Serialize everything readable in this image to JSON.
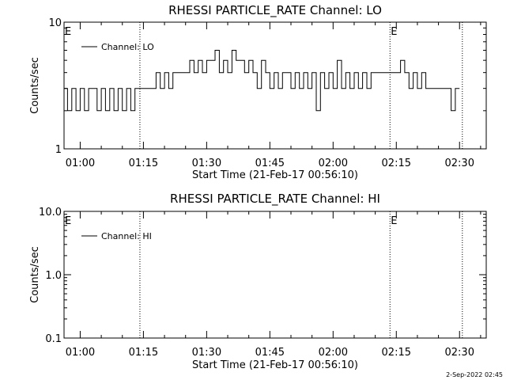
{
  "timestamp": "2-Sep-2022 02:45",
  "chart_data": [
    {
      "type": "line",
      "title": "RHESSI PARTICLE_RATE Channel: LO",
      "xlabel": "Start Time (21-Feb-17 00:56:10)",
      "ylabel": "Counts/sec",
      "yscale": "log",
      "ylim": [
        1,
        10
      ],
      "yticks": [
        "1",
        "10"
      ],
      "xlim": [
        "00:56:10",
        "02:36:20"
      ],
      "xticks": [
        "01:00",
        "01:15",
        "01:30",
        "01:45",
        "02:00",
        "02:15",
        "02:30"
      ],
      "legend": "top-left",
      "markers": [
        {
          "label": "E",
          "time": "00:56:10"
        },
        {
          "label": "E",
          "time": "02:13:30"
        }
      ],
      "vlines": [
        "01:14:10",
        "02:13:30",
        "02:30:40"
      ],
      "series": [
        {
          "name": "Channel: LO",
          "x": [
            "00:56:10",
            "00:57:00",
            "00:58:00",
            "00:59:00",
            "01:00:00",
            "01:01:00",
            "01:02:00",
            "01:03:00",
            "01:04:00",
            "01:05:00",
            "01:06:00",
            "01:07:00",
            "01:08:00",
            "01:09:00",
            "01:10:00",
            "01:11:00",
            "01:12:00",
            "01:13:00",
            "01:14:00",
            "01:15:00",
            "01:16:00",
            "01:17:00",
            "01:18:00",
            "01:19:00",
            "01:20:00",
            "01:21:00",
            "01:22:00",
            "01:23:00",
            "01:24:00",
            "01:25:00",
            "01:26:00",
            "01:27:00",
            "01:28:00",
            "01:29:00",
            "01:30:00",
            "01:31:00",
            "01:32:00",
            "01:33:00",
            "01:34:00",
            "01:35:00",
            "01:36:00",
            "01:37:00",
            "01:38:00",
            "01:39:00",
            "01:40:00",
            "01:41:00",
            "01:42:00",
            "01:43:00",
            "01:44:00",
            "01:45:00",
            "01:46:00",
            "01:47:00",
            "01:48:00",
            "01:49:00",
            "01:50:00",
            "01:51:00",
            "01:52:00",
            "01:53:00",
            "01:54:00",
            "01:55:00",
            "01:56:00",
            "01:57:00",
            "01:58:00",
            "01:59:00",
            "02:00:00",
            "02:01:00",
            "02:02:00",
            "02:03:00",
            "02:04:00",
            "02:05:00",
            "02:06:00",
            "02:07:00",
            "02:08:00",
            "02:09:00",
            "02:10:00",
            "02:11:00",
            "02:12:00",
            "02:13:00",
            "02:14:00",
            "02:15:00",
            "02:16:00",
            "02:17:00",
            "02:18:00",
            "02:19:00",
            "02:20:00",
            "02:21:00",
            "02:22:00",
            "02:23:00",
            "02:24:00",
            "02:25:00",
            "02:26:00",
            "02:27:00",
            "02:28:00",
            "02:29:00",
            "02:30:00"
          ],
          "values": [
            3,
            2,
            3,
            2,
            3,
            2,
            3,
            3,
            2,
            3,
            2,
            3,
            2,
            3,
            2,
            3,
            2,
            3,
            3,
            3,
            3,
            3,
            4,
            3,
            4,
            3,
            4,
            4,
            4,
            4,
            5,
            4,
            5,
            4,
            5,
            5,
            6,
            4,
            5,
            4,
            6,
            5,
            5,
            4,
            5,
            4,
            3,
            5,
            4,
            3,
            4,
            3,
            4,
            4,
            3,
            4,
            3,
            4,
            3,
            4,
            2,
            4,
            3,
            4,
            3,
            5,
            3,
            4,
            3,
            4,
            3,
            4,
            3,
            4,
            4,
            4,
            4,
            4,
            4,
            4,
            5,
            4,
            3,
            4,
            3,
            4,
            3,
            3,
            3,
            3,
            3,
            3,
            2,
            3,
            3
          ]
        }
      ]
    },
    {
      "type": "line",
      "title": "RHESSI PARTICLE_RATE Channel: HI",
      "xlabel": "Start Time (21-Feb-17 00:56:10)",
      "ylabel": "Counts/sec",
      "yscale": "log",
      "ylim": [
        0.1,
        10
      ],
      "yticks": [
        "0.1",
        "1.0",
        "10.0"
      ],
      "xlim": [
        "00:56:10",
        "02:36:20"
      ],
      "xticks": [
        "01:00",
        "01:15",
        "01:30",
        "01:45",
        "02:00",
        "02:15",
        "02:30"
      ],
      "legend": "top-left",
      "markers": [
        {
          "label": "E",
          "time": "00:56:10"
        },
        {
          "label": "E",
          "time": "02:13:30"
        }
      ],
      "vlines": [
        "01:14:10",
        "02:13:30",
        "02:30:40"
      ],
      "series": [
        {
          "name": "Channel: HI",
          "x": [],
          "values": []
        }
      ]
    }
  ]
}
